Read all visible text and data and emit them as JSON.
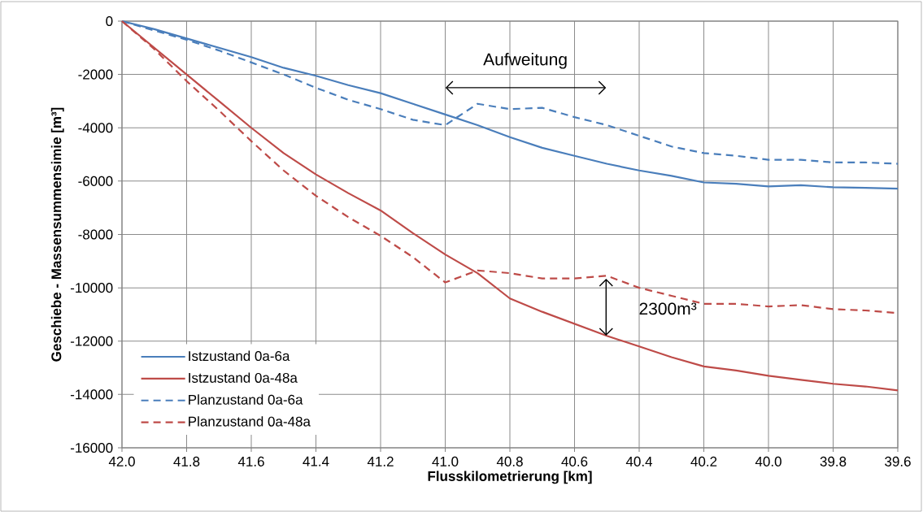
{
  "chart_data": {
    "type": "line",
    "xlabel": "Flusskilometrierung [km]",
    "ylabel": "Geschiebe - Massensummensimie [m³]",
    "x": [
      42.0,
      41.9,
      41.8,
      41.7,
      41.6,
      41.5,
      41.4,
      41.3,
      41.2,
      41.1,
      41.0,
      40.9,
      40.8,
      40.7,
      40.6,
      40.5,
      40.4,
      40.3,
      40.2,
      40.1,
      40.0,
      39.9,
      39.8,
      39.7,
      39.6
    ],
    "series": [
      {
        "name": "Istzustand 0a-6a",
        "color": "#4a7ebb",
        "line_style": "solid",
        "values": [
          0,
          -300,
          -650,
          -1000,
          -1350,
          -1750,
          -2050,
          -2400,
          -2700,
          -3100,
          -3500,
          -3900,
          -4350,
          -4750,
          -5050,
          -5350,
          -5600,
          -5800,
          -6050,
          -6100,
          -6200,
          -6150,
          -6230,
          -6250,
          -6280
        ]
      },
      {
        "name": "Istzustand 0a-48a",
        "color": "#be4b48",
        "line_style": "solid",
        "values": [
          0,
          -1000,
          -2000,
          -3000,
          -4000,
          -4950,
          -5750,
          -6450,
          -7100,
          -7950,
          -8750,
          -9450,
          -10400,
          -10900,
          -11350,
          -11800,
          -12200,
          -12600,
          -12950,
          -13100,
          -13300,
          -13450,
          -13600,
          -13700,
          -13850
        ]
      },
      {
        "name": "Planzustand 0a-6a",
        "color": "#4a7ebb",
        "line_style": "dashed",
        "values": [
          0,
          -350,
          -700,
          -1100,
          -1550,
          -2000,
          -2500,
          -2950,
          -3300,
          -3700,
          -3900,
          -3100,
          -3300,
          -3250,
          -3600,
          -3900,
          -4300,
          -4700,
          -4950,
          -5050,
          -5200,
          -5200,
          -5300,
          -5300,
          -5350
        ]
      },
      {
        "name": "Planzustand 0a-48a",
        "color": "#be4b48",
        "line_style": "dashed",
        "values": [
          0,
          -1050,
          -2250,
          -3350,
          -4500,
          -5600,
          -6550,
          -7350,
          -8050,
          -8850,
          -9800,
          -9350,
          -9450,
          -9650,
          -9650,
          -9550,
          -10000,
          -10300,
          -10600,
          -10600,
          -10700,
          -10650,
          -10800,
          -10850,
          -10950
        ]
      }
    ],
    "xlim": [
      42.0,
      39.6
    ],
    "xticks": [
      {
        "value": 42.0,
        "label": "42.0"
      },
      {
        "value": 41.8,
        "label": "41.8"
      },
      {
        "value": 41.6,
        "label": "41.6"
      },
      {
        "value": 41.4,
        "label": "41.4"
      },
      {
        "value": 41.2,
        "label": "41.2"
      },
      {
        "value": 41.0,
        "label": "41.0"
      },
      {
        "value": 40.8,
        "label": "40.8"
      },
      {
        "value": 40.6,
        "label": "40.6"
      },
      {
        "value": 40.4,
        "label": "40.4"
      },
      {
        "value": 40.2,
        "label": "40.2"
      },
      {
        "value": 40.0,
        "label": "40.0"
      },
      {
        "value": 39.8,
        "label": "39.8"
      },
      {
        "value": 39.6,
        "label": "39.6"
      }
    ],
    "ylim": [
      -16000,
      0
    ],
    "yticks": [
      -16000,
      -14000,
      -12000,
      -10000,
      -8000,
      -6000,
      -4000,
      -2000,
      0
    ],
    "grid": true,
    "legend": "bottom left",
    "marker": "none",
    "annotations": [
      "Aufweitung",
      "2300m³"
    ]
  }
}
